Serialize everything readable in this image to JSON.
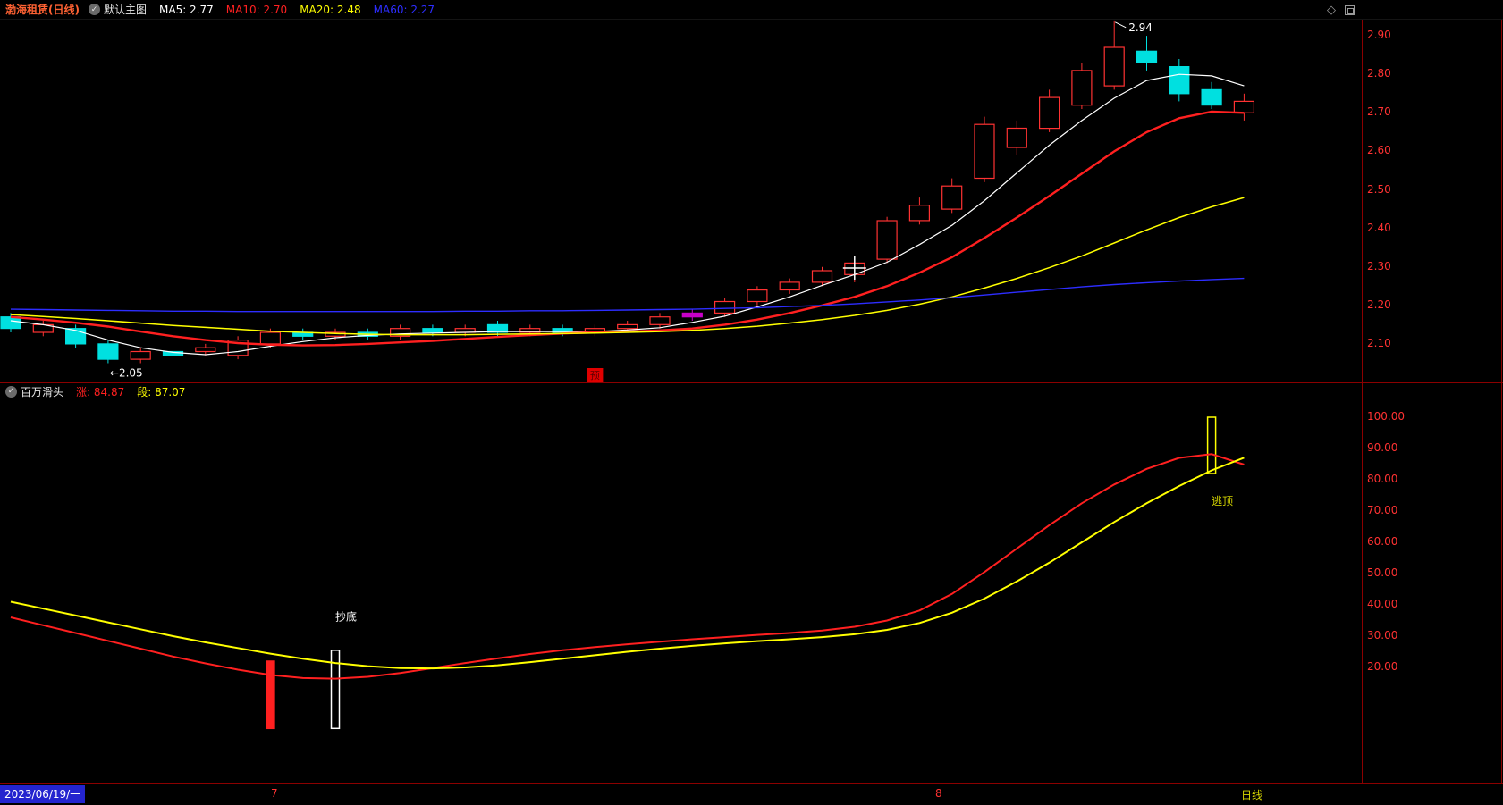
{
  "app": {
    "name": "stock-chart-terminal"
  },
  "colors": {
    "bg": "#000000",
    "border": "#8b0000",
    "up": "#ff3232",
    "down": "#00e0e0",
    "axis_text": "#ff3232"
  },
  "title_bar": {
    "stock_name": "渤海租赁(日线)",
    "overlay_icon": "check-circle-icon",
    "overlay_label": "默认主图",
    "ma_items": [
      {
        "label": "MA5: 2.77",
        "color": "#ffffff"
      },
      {
        "label": "MA10: 2.70",
        "color": "#ff2020"
      },
      {
        "label": "MA20: 2.48",
        "color": "#ffff00"
      },
      {
        "label": "MA60: 2.27",
        "color": "#2d2dff"
      }
    ],
    "corner_icons": [
      {
        "name": "diamond-icon",
        "glyph": "◇"
      },
      {
        "name": "window-icon",
        "glyph": ""
      }
    ]
  },
  "sub_header": {
    "indicator_icon": "check-circle-icon",
    "indicator_name": "百万滑头",
    "values": [
      {
        "label": "涨: 84.87",
        "color": "#ff2020"
      },
      {
        "label": "段: 87.07",
        "color": "#ffff00"
      }
    ]
  },
  "bottom_bar": {
    "date_label": "2023/06/19/一",
    "month_ticks": [
      {
        "label": "7",
        "x": 303
      },
      {
        "label": "8",
        "x": 1046
      }
    ],
    "period_label": "日线"
  },
  "chart_data": [
    {
      "id": "main-price-chart",
      "type": "candlestick",
      "title": "渤海租赁 日线 K线 + MA5/MA10/MA20/MA60",
      "ylim": [
        2.0,
        2.942
      ],
      "y_ticks": [
        2.9,
        2.8,
        2.7,
        2.6,
        2.5,
        2.4,
        2.3,
        2.2,
        2.1
      ],
      "grid": false,
      "up_color": "#ff3232",
      "down_color": "#00e0e0",
      "candles": [
        [
          2.17,
          2.18,
          2.13,
          2.14
        ],
        [
          2.13,
          2.16,
          2.12,
          2.15
        ],
        [
          2.14,
          2.15,
          2.09,
          2.1
        ],
        [
          2.1,
          2.11,
          2.05,
          2.06
        ],
        [
          2.06,
          2.09,
          2.05,
          2.08
        ],
        [
          2.08,
          2.09,
          2.06,
          2.07
        ],
        [
          2.08,
          2.1,
          2.07,
          2.09
        ],
        [
          2.07,
          2.12,
          2.06,
          2.11
        ],
        [
          2.1,
          2.14,
          2.09,
          2.13
        ],
        [
          2.13,
          2.14,
          2.11,
          2.12
        ],
        [
          2.12,
          2.14,
          2.11,
          2.13
        ],
        [
          2.13,
          2.14,
          2.11,
          2.12
        ],
        [
          2.12,
          2.15,
          2.11,
          2.14
        ],
        [
          2.14,
          2.15,
          2.12,
          2.13
        ],
        [
          2.13,
          2.15,
          2.12,
          2.14
        ],
        [
          2.15,
          2.16,
          2.12,
          2.13
        ],
        [
          2.13,
          2.15,
          2.12,
          2.14
        ],
        [
          2.14,
          2.15,
          2.12,
          2.13
        ],
        [
          2.13,
          2.15,
          2.12,
          2.14
        ],
        [
          2.14,
          2.16,
          2.13,
          2.15
        ],
        [
          2.15,
          2.18,
          2.14,
          2.17
        ],
        [
          2.17,
          2.19,
          2.16,
          2.18
        ],
        [
          2.18,
          2.22,
          2.17,
          2.21
        ],
        [
          2.21,
          2.25,
          2.2,
          2.24
        ],
        [
          2.24,
          2.27,
          2.23,
          2.26
        ],
        [
          2.26,
          2.3,
          2.25,
          2.29
        ],
        [
          2.28,
          2.32,
          2.26,
          2.31
        ],
        [
          2.32,
          2.43,
          2.31,
          2.42
        ],
        [
          2.42,
          2.48,
          2.41,
          2.46
        ],
        [
          2.45,
          2.53,
          2.44,
          2.51
        ],
        [
          2.53,
          2.69,
          2.52,
          2.67
        ],
        [
          2.61,
          2.68,
          2.59,
          2.66
        ],
        [
          2.66,
          2.76,
          2.65,
          2.74
        ],
        [
          2.72,
          2.83,
          2.71,
          2.81
        ],
        [
          2.77,
          2.94,
          2.76,
          2.87
        ],
        [
          2.86,
          2.9,
          2.81,
          2.83
        ],
        [
          2.82,
          2.84,
          2.73,
          2.75
        ],
        [
          2.76,
          2.78,
          2.71,
          2.72
        ],
        [
          2.7,
          2.75,
          2.68,
          2.73
        ]
      ],
      "candle_color_overrides": {
        "21": "#c800c8"
      },
      "ma": [
        {
          "name": "MA5",
          "color": "#ffffff",
          "width": 1.2,
          "values": [
            2.16,
            2.15,
            2.135,
            2.11,
            2.09,
            2.078,
            2.072,
            2.08,
            2.094,
            2.106,
            2.116,
            2.122,
            2.126,
            2.128,
            2.13,
            2.132,
            2.132,
            2.132,
            2.132,
            2.136,
            2.142,
            2.156,
            2.172,
            2.196,
            2.222,
            2.252,
            2.28,
            2.312,
            2.358,
            2.408,
            2.472,
            2.544,
            2.616,
            2.68,
            2.738,
            2.784,
            2.8,
            2.796,
            2.77
          ]
        },
        {
          "name": "MA10",
          "color": "#ff2020",
          "width": 2.4,
          "values": [
            2.17,
            2.163,
            2.155,
            2.145,
            2.132,
            2.12,
            2.11,
            2.102,
            2.098,
            2.096,
            2.097,
            2.1,
            2.104,
            2.108,
            2.113,
            2.118,
            2.123,
            2.127,
            2.13,
            2.132,
            2.135,
            2.14,
            2.15,
            2.163,
            2.18,
            2.2,
            2.222,
            2.25,
            2.285,
            2.325,
            2.375,
            2.428,
            2.484,
            2.542,
            2.6,
            2.65,
            2.686,
            2.703,
            2.7
          ]
        },
        {
          "name": "MA20",
          "color": "#ffff00",
          "width": 1.5,
          "values": [
            2.176,
            2.171,
            2.166,
            2.16,
            2.154,
            2.148,
            2.143,
            2.138,
            2.133,
            2.13,
            2.127,
            2.125,
            2.124,
            2.124,
            2.124,
            2.125,
            2.126,
            2.127,
            2.128,
            2.13,
            2.132,
            2.135,
            2.14,
            2.146,
            2.154,
            2.163,
            2.174,
            2.187,
            2.203,
            2.222,
            2.245,
            2.27,
            2.298,
            2.328,
            2.362,
            2.396,
            2.428,
            2.456,
            2.48
          ]
        },
        {
          "name": "MA60",
          "color": "#2d2dff",
          "width": 1.4,
          "values": [
            2.19,
            2.189,
            2.188,
            2.187,
            2.186,
            2.185,
            2.185,
            2.184,
            2.184,
            2.184,
            2.184,
            2.184,
            2.184,
            2.184,
            2.185,
            2.185,
            2.186,
            2.186,
            2.187,
            2.188,
            2.189,
            2.19,
            2.192,
            2.194,
            2.197,
            2.2,
            2.204,
            2.209,
            2.214,
            2.22,
            2.227,
            2.234,
            2.241,
            2.248,
            2.254,
            2.259,
            2.263,
            2.267,
            2.27
          ]
        }
      ],
      "annotations": [
        {
          "type": "high-label",
          "index": 34,
          "text": "2.94",
          "color": "#ffffff"
        },
        {
          "type": "low-label",
          "index": 3,
          "text": "←2.05",
          "color": "#ffffff"
        },
        {
          "type": "event-badge",
          "index": 18,
          "text": "预",
          "bg": "#e00000",
          "color": "#5a0000"
        }
      ],
      "crosshair": {
        "index": 26,
        "price": 2.297
      }
    },
    {
      "id": "indicator-panel",
      "type": "line",
      "title": "百万滑头",
      "ylim": [
        -16.57,
        105.43
      ],
      "y_ticks": [
        100,
        90,
        80,
        70,
        60,
        50,
        40,
        30,
        20
      ],
      "grid": false,
      "series": [
        {
          "name": "涨",
          "color": "#ff2020",
          "width": 2,
          "values": [
            36.0,
            33.5,
            31.0,
            28.5,
            26.0,
            23.5,
            21.3,
            19.3,
            17.6,
            16.6,
            16.4,
            17.0,
            18.2,
            19.8,
            21.4,
            22.9,
            24.3,
            25.5,
            26.5,
            27.4,
            28.2,
            29.0,
            29.7,
            30.4,
            31.0,
            31.8,
            33.0,
            35.0,
            38.2,
            43.5,
            50.5,
            58.0,
            65.5,
            72.5,
            78.5,
            83.5,
            87.0,
            88.2,
            84.87
          ]
        },
        {
          "name": "段",
          "color": "#ffff00",
          "width": 2,
          "values": [
            41.0,
            38.8,
            36.6,
            34.4,
            32.2,
            30.0,
            28.0,
            26.2,
            24.4,
            22.8,
            21.4,
            20.4,
            19.8,
            19.7,
            20.0,
            20.7,
            21.7,
            22.8,
            23.9,
            25.0,
            26.0,
            26.9,
            27.7,
            28.4,
            29.0,
            29.7,
            30.6,
            32.0,
            34.2,
            37.5,
            42.0,
            47.5,
            53.5,
            60.0,
            66.5,
            72.5,
            78.0,
            83.0,
            87.07
          ]
        }
      ],
      "signal_bars": [
        {
          "index": 8,
          "from": 0.5,
          "to": 22,
          "color": "#ff2020",
          "solid": true
        },
        {
          "index": 10,
          "from": 0.5,
          "to": 25.5,
          "color": "#ffffff",
          "solid": false
        },
        {
          "index": 37,
          "from": 82,
          "to": 100,
          "color": "#ffff00",
          "solid": false
        }
      ],
      "labels": [
        {
          "text": "抄底",
          "index": 10,
          "value": 35,
          "color": "#ffffff"
        },
        {
          "text": "逃顶",
          "index": 37,
          "value": 72,
          "color": "#cfcf00"
        }
      ]
    }
  ]
}
